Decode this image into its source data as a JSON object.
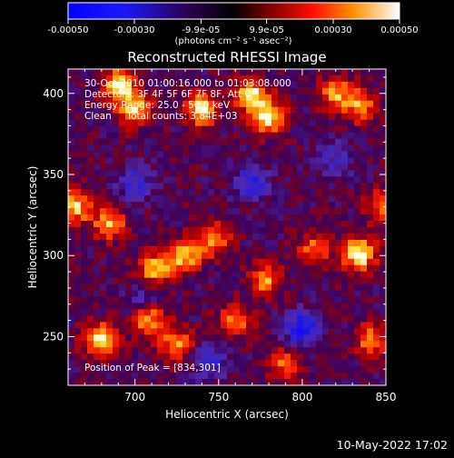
{
  "chart_data": {
    "type": "heatmap",
    "title": "Reconstructed RHESSI Image",
    "xlabel": "Heliocentric X (arcsec)",
    "ylabel": "Heliocentric Y (arcsec)",
    "xlim": [
      660,
      850
    ],
    "ylim": [
      220,
      415
    ],
    "x_ticks": [
      700,
      750,
      800,
      850
    ],
    "y_ticks": [
      250,
      300,
      350,
      400
    ],
    "colorbar": {
      "ticks": [
        "-0.00050",
        "-0.00030",
        "-9.9e-05",
        "9.9e-05",
        "0.00030",
        "0.00050"
      ],
      "range": [
        -0.0005,
        0.0005
      ],
      "units": "(photons cm⁻² s⁻¹ asec⁻²)"
    },
    "annotations": [
      "30-Oct-2010 01:00:16.000 to 01:03:08.000",
      "Detectors: 3F 4F 5F 6F 7F 8F, Att 0",
      "Energy Range: 25.0 - 50.0 keV",
      "Clean     Total counts: 3.84E+03"
    ],
    "peak_label": "Position of Peak = [834,301]",
    "peak": [
      834,
      301
    ],
    "bright_sources": [
      {
        "x": 690,
        "y": 405,
        "v": 0.9
      },
      {
        "x": 700,
        "y": 390,
        "v": 0.85
      },
      {
        "x": 740,
        "y": 390,
        "v": 0.9
      },
      {
        "x": 770,
        "y": 398,
        "v": 0.9
      },
      {
        "x": 780,
        "y": 385,
        "v": 0.85
      },
      {
        "x": 820,
        "y": 400,
        "v": 0.7
      },
      {
        "x": 835,
        "y": 392,
        "v": 0.65
      },
      {
        "x": 665,
        "y": 330,
        "v": 0.75
      },
      {
        "x": 685,
        "y": 320,
        "v": 0.7
      },
      {
        "x": 712,
        "y": 292,
        "v": 0.75
      },
      {
        "x": 730,
        "y": 300,
        "v": 0.8
      },
      {
        "x": 747,
        "y": 310,
        "v": 0.7
      },
      {
        "x": 778,
        "y": 285,
        "v": 0.65
      },
      {
        "x": 807,
        "y": 303,
        "v": 0.6
      },
      {
        "x": 834,
        "y": 301,
        "v": 1.0
      },
      {
        "x": 680,
        "y": 248,
        "v": 0.95
      },
      {
        "x": 708,
        "y": 262,
        "v": 0.85
      },
      {
        "x": 725,
        "y": 245,
        "v": 0.7
      },
      {
        "x": 760,
        "y": 260,
        "v": 0.6
      },
      {
        "x": 790,
        "y": 232,
        "v": 0.55
      },
      {
        "x": 842,
        "y": 248,
        "v": 0.65
      },
      {
        "x": 847,
        "y": 330,
        "v": 0.55
      }
    ],
    "dark_sources": [
      {
        "x": 770,
        "y": 345,
        "v": -0.6
      },
      {
        "x": 800,
        "y": 255,
        "v": -0.8
      },
      {
        "x": 700,
        "y": 345,
        "v": -0.5
      },
      {
        "x": 705,
        "y": 270,
        "v": -0.45
      },
      {
        "x": 745,
        "y": 235,
        "v": -0.5
      },
      {
        "x": 820,
        "y": 360,
        "v": -0.4
      }
    ]
  },
  "footer": {
    "timestamp": "10-May-2022 17:02"
  }
}
